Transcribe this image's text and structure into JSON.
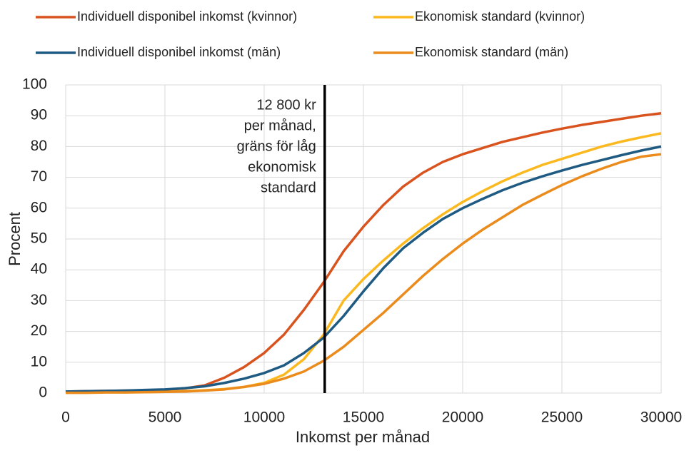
{
  "chart_data": {
    "type": "line",
    "xlabel": "Inkomst per månad",
    "ylabel": "Procent",
    "x": [
      0,
      1000,
      2000,
      3000,
      4000,
      5000,
      6000,
      7000,
      8000,
      9000,
      10000,
      11000,
      12000,
      13000,
      14000,
      15000,
      16000,
      17000,
      18000,
      19000,
      20000,
      21000,
      22000,
      23000,
      24000,
      25000,
      26000,
      27000,
      28000,
      29000,
      30000
    ],
    "series": [
      {
        "name": "Individuell disponibel inkomst (kvinnor)",
        "color": "#d9531e",
        "values": [
          0.5,
          0.6,
          0.7,
          0.8,
          0.9,
          1.1,
          1.5,
          2.5,
          5,
          8.5,
          13,
          19,
          27,
          36,
          46,
          54,
          61,
          67,
          71.5,
          75,
          77.5,
          79.5,
          81.5,
          83,
          84.5,
          85.8,
          87,
          88,
          89,
          90,
          90.8
        ]
      },
      {
        "name": "Ekonomisk standard (kvinnor)",
        "color": "#fbb91f",
        "values": [
          0.2,
          0.2,
          0.3,
          0.3,
          0.3,
          0.4,
          0.6,
          0.9,
          1.3,
          2,
          3.3,
          6,
          11,
          19,
          30,
          37,
          43,
          48.5,
          53.5,
          58,
          62,
          65.5,
          68.7,
          71.5,
          74,
          76,
          78,
          80,
          81.6,
          83,
          84.3
        ]
      },
      {
        "name": "Individuell disponibel inkomst (män)",
        "color": "#1e5a82",
        "values": [
          0.5,
          0.6,
          0.7,
          0.8,
          1,
          1.2,
          1.6,
          2.2,
          3.3,
          4.7,
          6.5,
          9,
          13,
          18,
          25,
          33,
          40.5,
          47,
          52,
          56.5,
          60,
          63,
          65.8,
          68.2,
          70.3,
          72.2,
          74,
          75.6,
          77.2,
          78.7,
          80
        ]
      },
      {
        "name": "Ekonomisk standard (män)",
        "color": "#ea8b1c",
        "values": [
          0.1,
          0.1,
          0.2,
          0.2,
          0.3,
          0.4,
          0.5,
          0.8,
          1.2,
          2,
          3,
          4.7,
          7,
          10.5,
          15,
          20.5,
          26,
          32,
          38,
          43.5,
          48.5,
          53,
          57,
          61,
          64.3,
          67.5,
          70.3,
          72.8,
          75,
          76.7,
          77.5
        ]
      }
    ],
    "annotation": {
      "x": 13050,
      "color": "#000000",
      "lines": [
        "12 800 kr",
        "per månad,",
        "gräns för låg",
        "ekonomisk",
        "standard"
      ]
    },
    "xlim": [
      0,
      30000
    ],
    "xticks": [
      0,
      5000,
      10000,
      15000,
      20000,
      25000,
      30000
    ],
    "ylim": [
      0,
      100
    ],
    "yticks": [
      0,
      10,
      20,
      30,
      40,
      50,
      60,
      70,
      80,
      90,
      100
    ],
    "grid": true
  }
}
